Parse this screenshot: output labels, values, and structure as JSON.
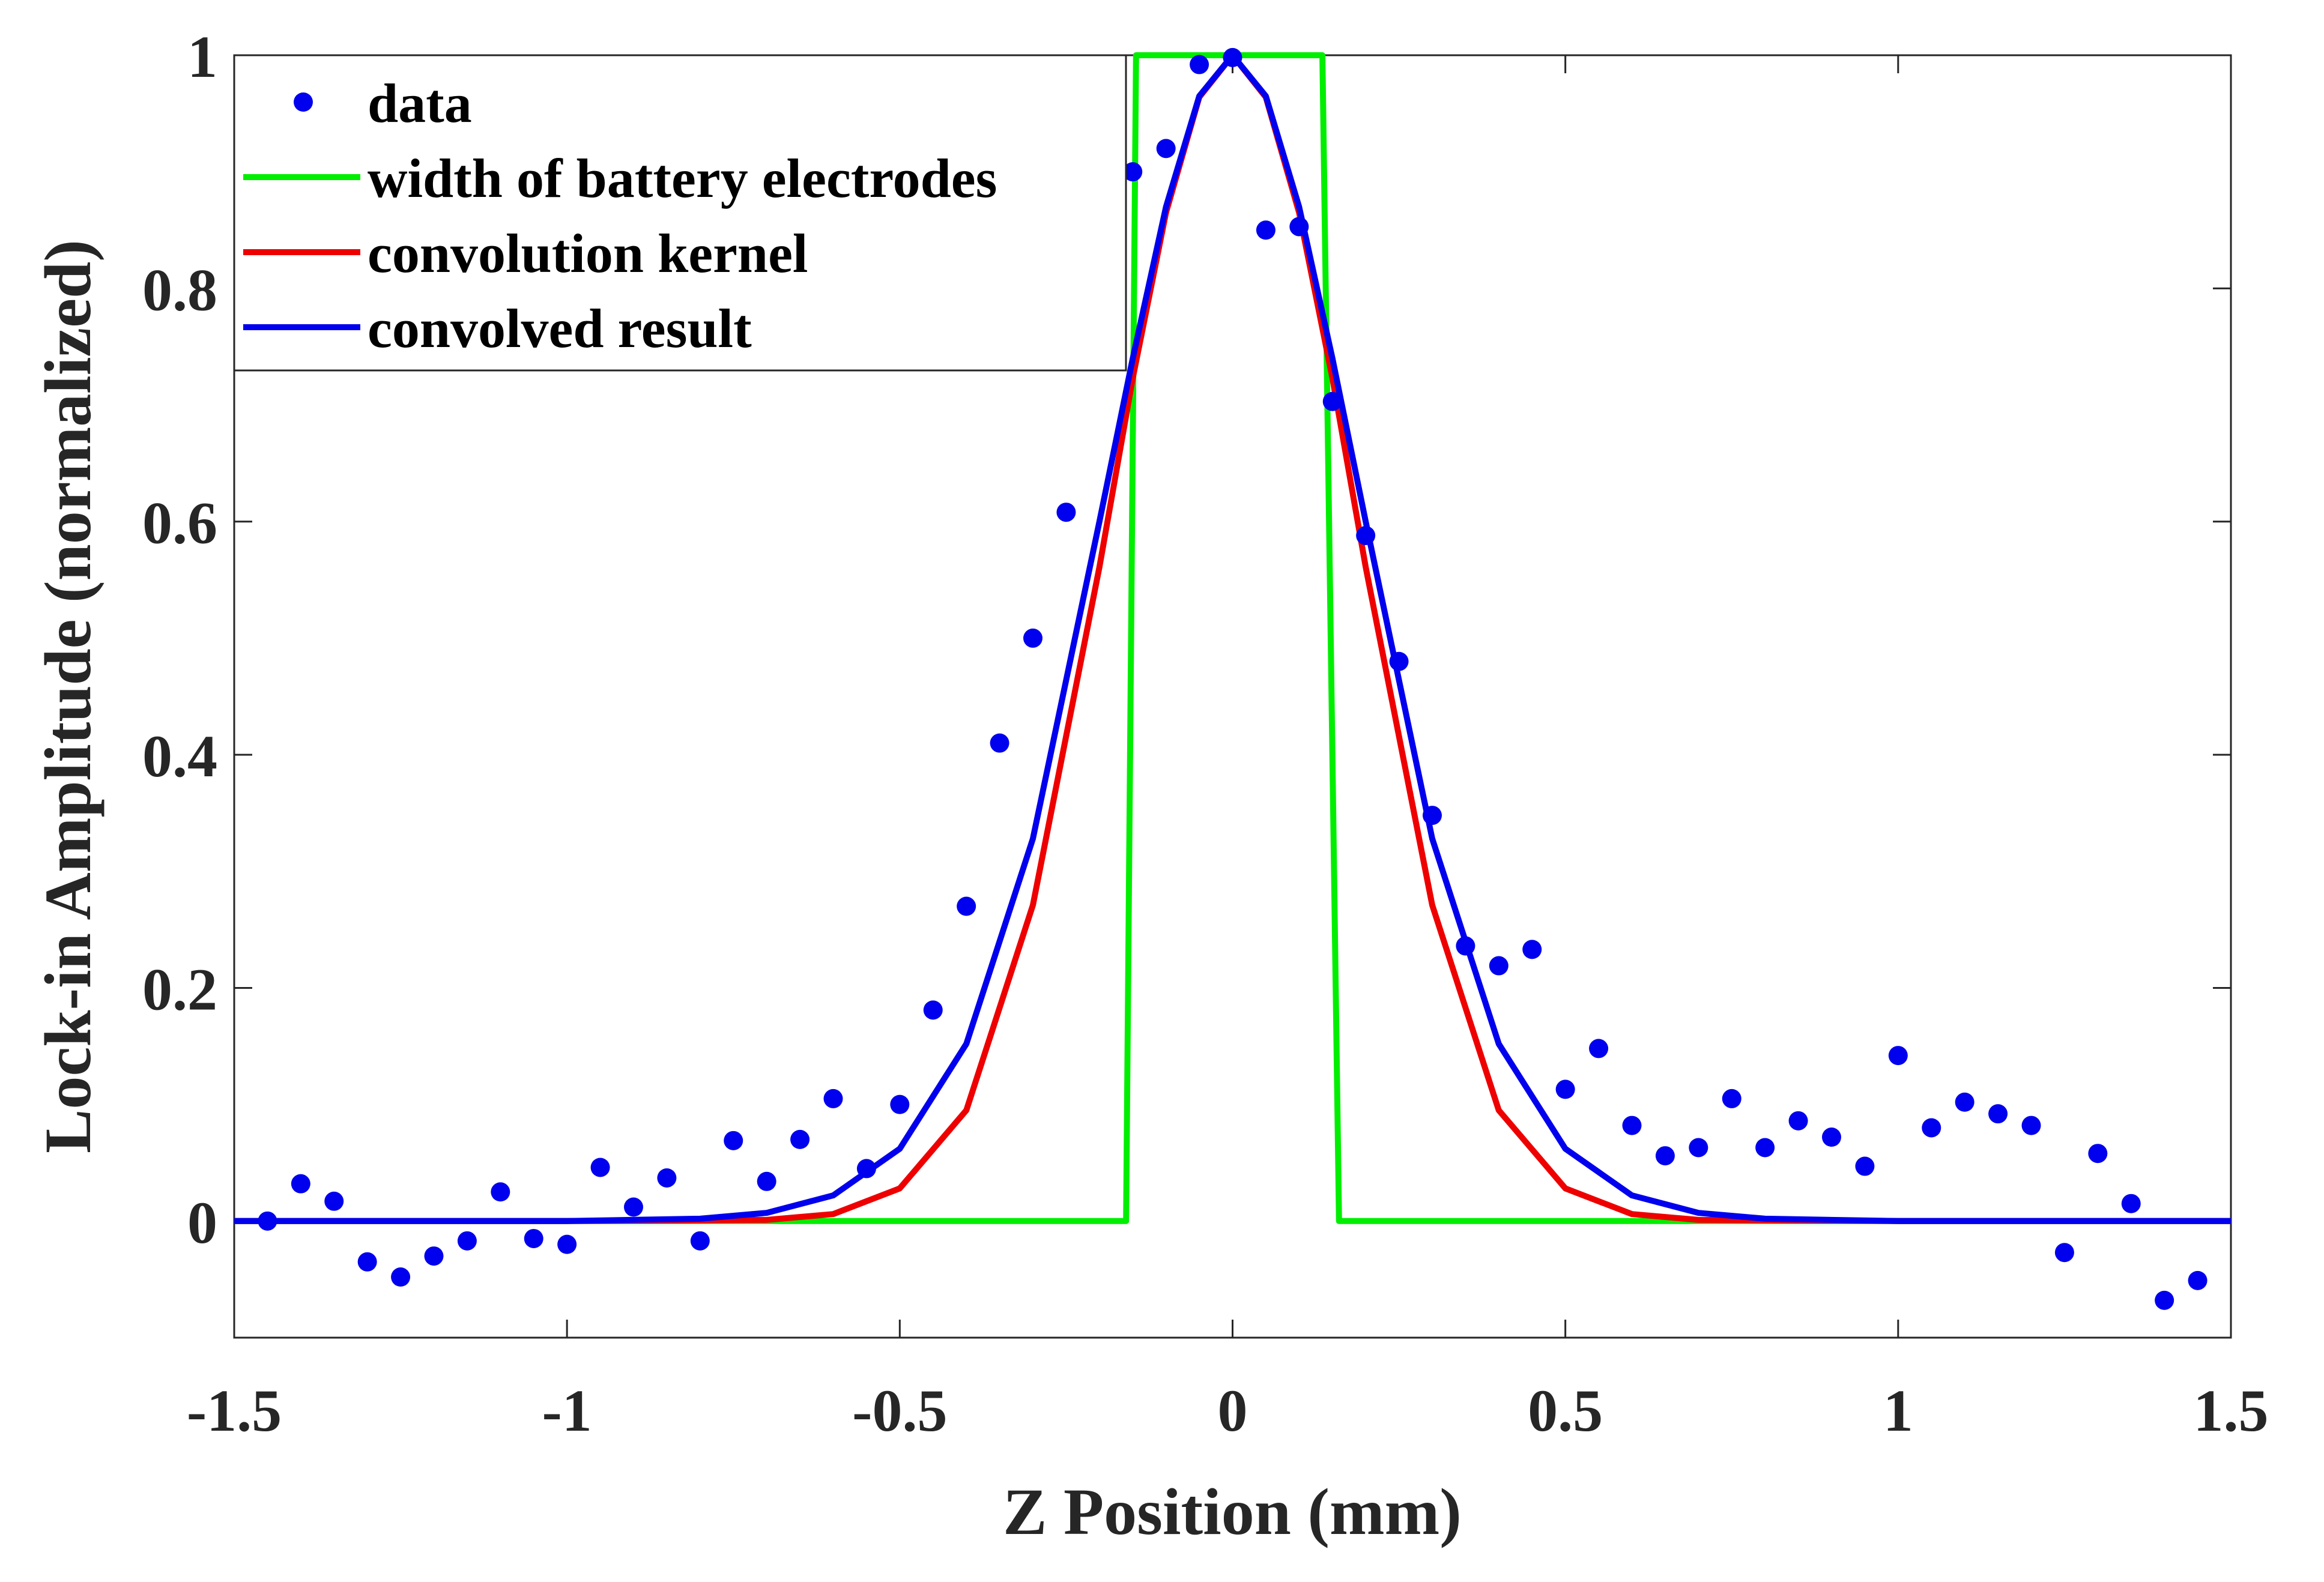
{
  "chart_data": {
    "type": "line",
    "title": "",
    "xlabel": "Z Position (mm)",
    "ylabel": "Lock-in Amplitude (normalized)",
    "xlim": [
      -1.5,
      1.5
    ],
    "ylim": [
      -0.1,
      1.0
    ],
    "xticks": [
      -1.5,
      -1,
      -0.5,
      0,
      0.5,
      1,
      1.5
    ],
    "xtick_labels": [
      "-1.5",
      "-1",
      "-0.5",
      "0",
      "0.5",
      "1",
      "1.5"
    ],
    "yticks": [
      0,
      0.2,
      0.4,
      0.6,
      0.8,
      1
    ],
    "ytick_labels": [
      "0",
      "0.2",
      "0.4",
      "0.6",
      "0.8",
      "1"
    ],
    "grid": false,
    "legend_position": "top-left",
    "series": [
      {
        "name": "data",
        "kind": "scatter",
        "color": "#0000ee",
        "x": [
          -1.45,
          -1.4,
          -1.35,
          -1.3,
          -1.25,
          -1.2,
          -1.15,
          -1.1,
          -1.05,
          -1.0,
          -0.95,
          -0.9,
          -0.85,
          -0.8,
          -0.75,
          -0.7,
          -0.65,
          -0.6,
          -0.55,
          -0.5,
          -0.45,
          -0.4,
          -0.35,
          -0.3,
          -0.25,
          -0.2,
          -0.15,
          -0.1,
          -0.05,
          0.0,
          0.05,
          0.1,
          0.15,
          0.2,
          0.25,
          0.3,
          0.35,
          0.4,
          0.45,
          0.5,
          0.55,
          0.6,
          0.65,
          0.7,
          0.75,
          0.8,
          0.85,
          0.9,
          0.95,
          1.0,
          1.05,
          1.1,
          1.15,
          1.2,
          1.25,
          1.3,
          1.35,
          1.4,
          1.45
        ],
        "y": [
          0.0,
          0.032,
          0.017,
          -0.035,
          -0.048,
          -0.03,
          -0.017,
          0.025,
          -0.015,
          -0.02,
          0.046,
          0.012,
          0.037,
          -0.017,
          0.069,
          0.034,
          0.07,
          0.105,
          0.045,
          0.1,
          0.181,
          0.27,
          0.41,
          0.5,
          0.608,
          0.75,
          0.9,
          0.92,
          0.992,
          0.998,
          0.85,
          0.853,
          0.703,
          0.588,
          0.48,
          0.348,
          0.236,
          0.219,
          0.233,
          0.113,
          0.148,
          0.082,
          0.056,
          0.063,
          0.105,
          0.063,
          0.086,
          0.072,
          0.047,
          0.142,
          0.08,
          0.102,
          0.092,
          0.082,
          -0.027,
          0.058,
          0.015,
          -0.068,
          -0.051
        ]
      },
      {
        "name": "width of battery electrodes",
        "kind": "line",
        "color": "#00ee00",
        "x": [
          -1.5,
          -0.16,
          -0.145,
          0.135,
          0.16,
          1.5
        ],
        "y": [
          0,
          0,
          1,
          1,
          0,
          0
        ]
      },
      {
        "name": "convolution kernel",
        "kind": "line",
        "color": "#ee0000",
        "x": [
          -1.5,
          -1.0,
          -0.7,
          -0.6,
          -0.5,
          -0.4,
          -0.3,
          -0.2,
          -0.15,
          -0.1,
          -0.05,
          0.0,
          0.05,
          0.1,
          0.15,
          0.2,
          0.3,
          0.4,
          0.5,
          0.6,
          0.7,
          1.0,
          1.5
        ],
        "y": [
          0,
          0,
          0.001,
          0.006,
          0.028,
          0.095,
          0.271,
          0.561,
          0.723,
          0.865,
          0.964,
          1.0,
          0.964,
          0.865,
          0.723,
          0.561,
          0.271,
          0.095,
          0.028,
          0.006,
          0.001,
          0,
          0
        ]
      },
      {
        "name": "convolved result",
        "kind": "line",
        "color": "#0000ee",
        "x": [
          -1.5,
          -1.0,
          -0.8,
          -0.7,
          -0.6,
          -0.5,
          -0.4,
          -0.3,
          -0.2,
          -0.15,
          -0.1,
          -0.05,
          0.0,
          0.05,
          0.1,
          0.15,
          0.2,
          0.3,
          0.4,
          0.5,
          0.6,
          0.7,
          0.8,
          1.0,
          1.5
        ],
        "y": [
          0,
          0,
          0.002,
          0.007,
          0.022,
          0.062,
          0.152,
          0.328,
          0.6,
          0.74,
          0.87,
          0.965,
          1.0,
          0.965,
          0.87,
          0.74,
          0.6,
          0.328,
          0.152,
          0.062,
          0.022,
          0.007,
          0.002,
          0,
          0
        ]
      }
    ]
  }
}
